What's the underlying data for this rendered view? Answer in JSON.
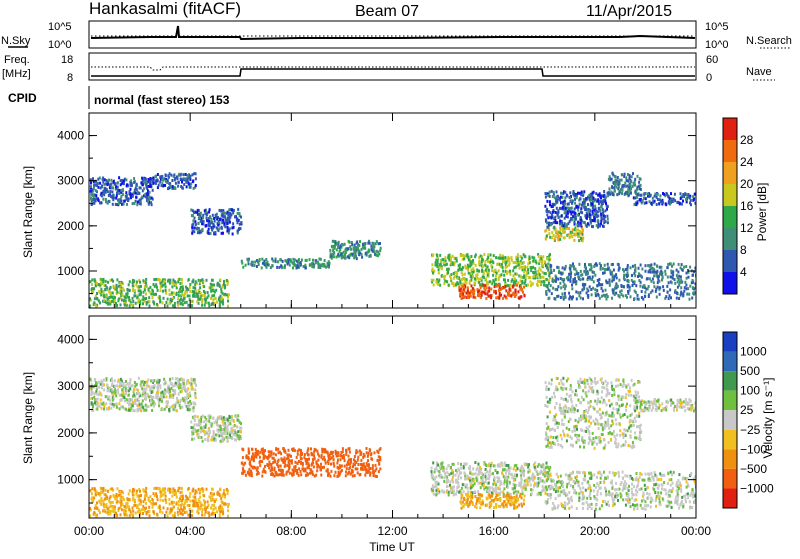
{
  "header": {
    "station": "Hankasalmi (fitACF)",
    "beam": "Beam 07",
    "date": "11/Apr/2015"
  },
  "strip_labels": {
    "nsky": "N.Sky",
    "nsearch": "N.Search",
    "freq_line1": "Freq.",
    "freq_line2": "[MHz]",
    "nave": "Nave",
    "cpid": "CPID",
    "cpid_text": "normal (fast stereo) 153"
  },
  "strip_ticks": {
    "noise_left": [
      "10^5",
      "10^0"
    ],
    "noise_right": [
      "10^5",
      "10^0"
    ],
    "freq_left": [
      "18",
      "8"
    ],
    "nave_right": [
      "60",
      "0"
    ]
  },
  "colors": {
    "power_scale": [
      "#1010e8",
      "#2f58b0",
      "#3f8f76",
      "#2fa84a",
      "#c8c81e",
      "#f0a020",
      "#f06a10",
      "#e02010"
    ],
    "velocity_scale": [
      "#1840c0",
      "#2f6ab8",
      "#3f9a50",
      "#70c040",
      "#c8c8c8",
      "#f0c020",
      "#f09010",
      "#f06010",
      "#e02010"
    ]
  },
  "chart_data": [
    {
      "type": "heatmap",
      "title": "",
      "xlabel": "",
      "ylabel": "Slant Range [km]",
      "x_ticks": [
        "00:00",
        "04:00",
        "08:00",
        "12:00",
        "16:00",
        "20:00",
        "00:00"
      ],
      "y_ticks": [
        "1000",
        "2000",
        "3000",
        "4000"
      ],
      "ylim": [
        180,
        4500
      ],
      "colorbar": {
        "label": "Power [dB]",
        "ticks": [
          "4",
          "8",
          "12",
          "16",
          "20",
          "24",
          "28"
        ],
        "range": [
          0,
          32
        ]
      },
      "echo_regions": [
        {
          "t": [
            0.0,
            5.5
          ],
          "r": [
            250,
            850
          ],
          "value": 14
        },
        {
          "t": [
            0.0,
            2.5
          ],
          "r": [
            2500,
            3100
          ],
          "value": 6
        },
        {
          "t": [
            2.5,
            4.2
          ],
          "r": [
            2850,
            3200
          ],
          "value": 6
        },
        {
          "t": [
            4.0,
            6.0
          ],
          "r": [
            1850,
            2400
          ],
          "value": 6
        },
        {
          "t": [
            6.0,
            9.5
          ],
          "r": [
            1100,
            1300
          ],
          "value": 10
        },
        {
          "t": [
            9.5,
            11.5
          ],
          "r": [
            1300,
            1700
          ],
          "value": 10
        },
        {
          "t": [
            13.5,
            18.2
          ],
          "r": [
            700,
            1400
          ],
          "value": 16
        },
        {
          "t": [
            14.6,
            17.2
          ],
          "r": [
            420,
            720
          ],
          "value": 28
        },
        {
          "t": [
            18.0,
            19.5
          ],
          "r": [
            1700,
            2000
          ],
          "value": 18
        },
        {
          "t": [
            18.0,
            20.5
          ],
          "r": [
            2000,
            2800
          ],
          "value": 6
        },
        {
          "t": [
            20.5,
            21.8
          ],
          "r": [
            2700,
            3200
          ],
          "value": 8
        },
        {
          "t": [
            21.5,
            24.0
          ],
          "r": [
            2500,
            2750
          ],
          "value": 6
        },
        {
          "t": [
            18.0,
            24.0
          ],
          "r": [
            400,
            1200
          ],
          "value": 8
        }
      ]
    },
    {
      "type": "heatmap",
      "title": "",
      "xlabel": "Time UT",
      "ylabel": "Slant Range [km]",
      "x_ticks": [
        "00:00",
        "04:00",
        "08:00",
        "12:00",
        "16:00",
        "20:00",
        "00:00"
      ],
      "y_ticks": [
        "1000",
        "2000",
        "3000",
        "4000"
      ],
      "ylim": [
        180,
        4500
      ],
      "colorbar": {
        "label": "Velocity [m s⁻¹]",
        "ticks": [
          "1000",
          "500",
          "100",
          "25",
          "−25",
          "−100",
          "−500",
          "−1000"
        ]
      },
      "echo_regions": [
        {
          "t": [
            0.0,
            5.5
          ],
          "r": [
            250,
            850
          ],
          "value": -100
        },
        {
          "t": [
            0.0,
            4.2
          ],
          "r": [
            2500,
            3200
          ],
          "value": 0
        },
        {
          "t": [
            4.0,
            6.0
          ],
          "r": [
            1850,
            2400
          ],
          "value": 0
        },
        {
          "t": [
            6.0,
            11.5
          ],
          "r": [
            1100,
            1700
          ],
          "value": -300
        },
        {
          "t": [
            13.5,
            18.2
          ],
          "r": [
            700,
            1400
          ],
          "value": 0
        },
        {
          "t": [
            14.6,
            17.2
          ],
          "r": [
            420,
            720
          ],
          "value": -100
        },
        {
          "t": [
            18.0,
            21.8
          ],
          "r": [
            1700,
            3200
          ],
          "value": 0
        },
        {
          "t": [
            21.5,
            24.0
          ],
          "r": [
            2500,
            2750
          ],
          "value": 0
        },
        {
          "t": [
            18.0,
            24.0
          ],
          "r": [
            400,
            1200
          ],
          "value": 0
        }
      ]
    }
  ]
}
